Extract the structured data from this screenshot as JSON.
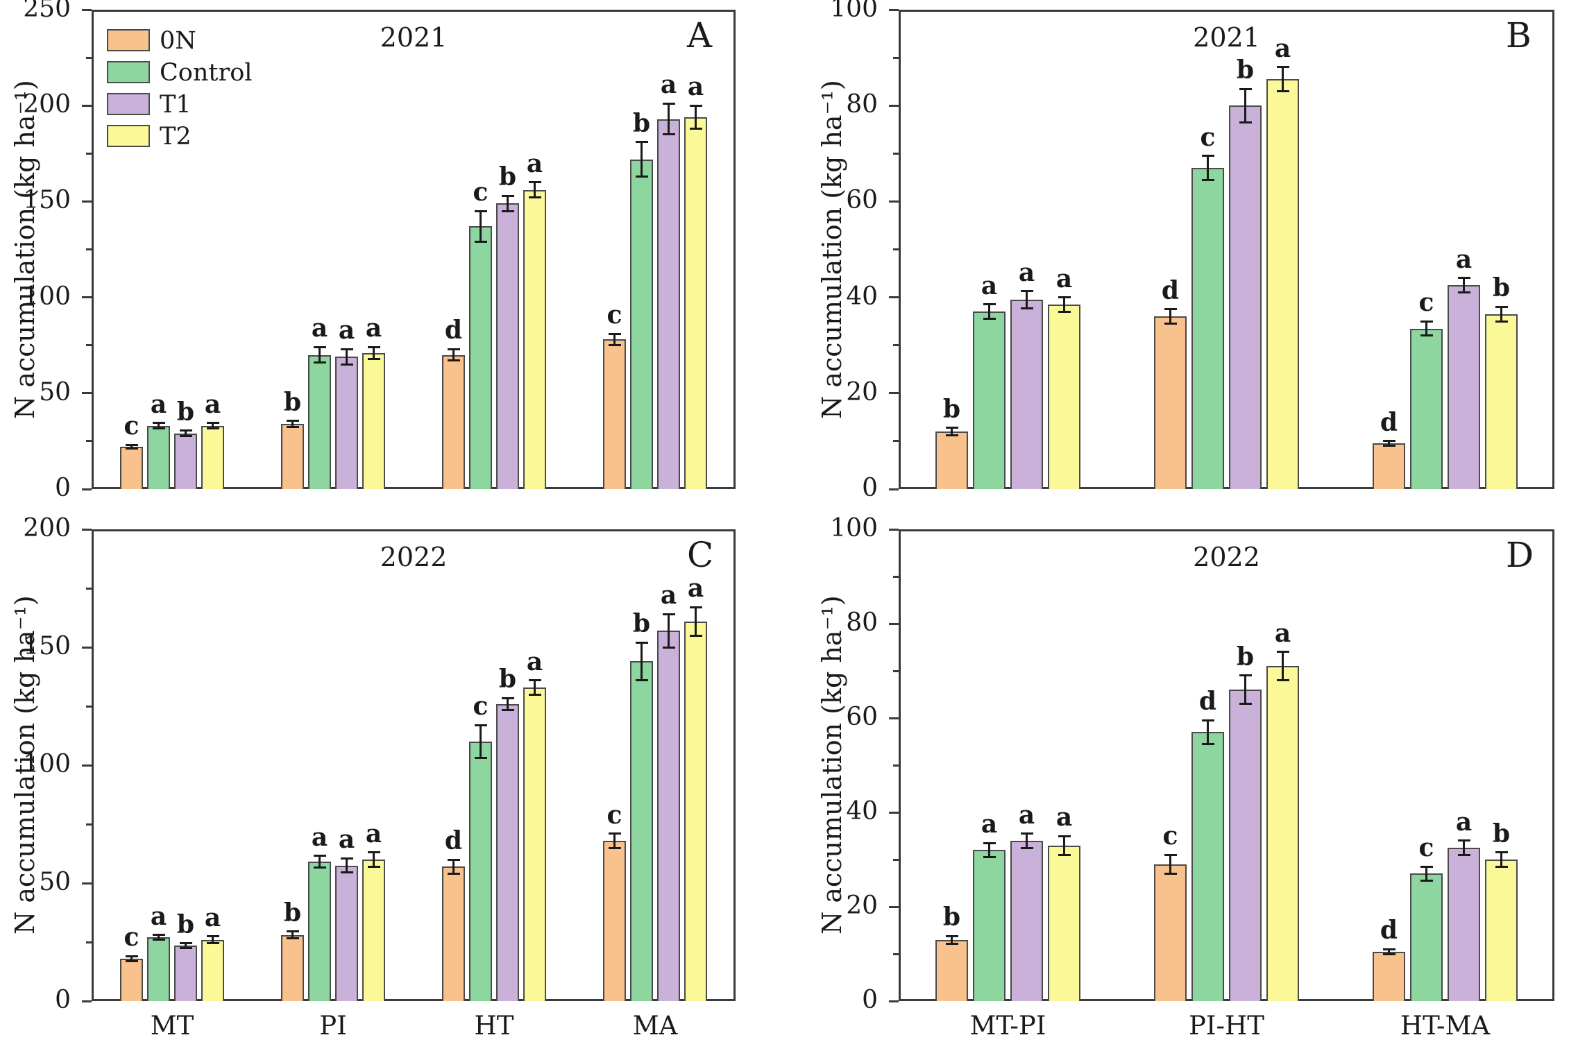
{
  "figure": {
    "background": "#ffffff",
    "axis_color": "#3a3a3a",
    "text_color": "#1a1a1a",
    "error_bar_color": "#1a1a1a",
    "bar_border_color": "#4a4a4a",
    "legend_items": [
      "0N",
      "Control",
      "T1",
      "T2"
    ],
    "treatment_colors": {
      "0N": "#f9c18c",
      "Control": "#8dd6a0",
      "T1": "#cab1da",
      "T2": "#fbf897"
    }
  },
  "chart_data": [
    {
      "id": "A",
      "type": "bar",
      "panel_label": "A",
      "title": "2021",
      "ylabel": "N accumulation (kg ha⁻¹)",
      "ylim": [
        0,
        250
      ],
      "yticks": [
        0,
        50,
        100,
        150,
        200,
        250
      ],
      "categories": [
        "MT",
        "PI",
        "HT",
        "MA"
      ],
      "show_legend": true,
      "show_category_labels": false,
      "legend_position": "top-left",
      "series": [
        {
          "name": "0N",
          "values": [
            22,
            34,
            70,
            78
          ],
          "errors": [
            1,
            1.5,
            3,
            3
          ],
          "letters": [
            "c",
            "b",
            "d",
            "c"
          ]
        },
        {
          "name": "Control",
          "values": [
            33,
            70,
            137,
            172
          ],
          "errors": [
            1.5,
            4,
            8,
            9
          ],
          "letters": [
            "a",
            "a",
            "c",
            "b"
          ]
        },
        {
          "name": "T1",
          "values": [
            29,
            69,
            149,
            193
          ],
          "errors": [
            1.5,
            4,
            4,
            8
          ],
          "letters": [
            "b",
            "a",
            "b",
            "a"
          ]
        },
        {
          "name": "T2",
          "values": [
            33,
            71,
            156,
            194
          ],
          "errors": [
            1.5,
            3,
            4,
            6
          ],
          "letters": [
            "a",
            "a",
            "a",
            "a"
          ]
        }
      ]
    },
    {
      "id": "B",
      "type": "bar",
      "panel_label": "B",
      "title": "2021",
      "ylabel": "N accumulation (kg ha⁻¹)",
      "ylim": [
        0,
        100
      ],
      "yticks": [
        0,
        20,
        40,
        60,
        80,
        100
      ],
      "categories": [
        "MT-PI",
        "PI-HT",
        "HT-MA"
      ],
      "show_legend": false,
      "show_category_labels": false,
      "series": [
        {
          "name": "0N",
          "values": [
            12,
            36,
            9.5
          ],
          "errors": [
            0.8,
            1.5,
            0.5
          ],
          "letters": [
            "b",
            "d",
            "d"
          ]
        },
        {
          "name": "Control",
          "values": [
            37,
            67,
            33.5
          ],
          "errors": [
            1.5,
            2.5,
            1.5
          ],
          "letters": [
            "a",
            "c",
            "c"
          ]
        },
        {
          "name": "T1",
          "values": [
            39.5,
            80,
            42.5
          ],
          "errors": [
            1.8,
            3.5,
            1.5
          ],
          "letters": [
            "a",
            "b",
            "a"
          ]
        },
        {
          "name": "T2",
          "values": [
            38.5,
            85.5,
            36.5
          ],
          "errors": [
            1.5,
            2.5,
            1.5
          ],
          "letters": [
            "a",
            "a",
            "b"
          ]
        }
      ]
    },
    {
      "id": "C",
      "type": "bar",
      "panel_label": "C",
      "title": "2022",
      "ylabel": "N accumulation (kg ha⁻¹)",
      "ylim": [
        0,
        200
      ],
      "yticks": [
        0,
        50,
        100,
        150,
        200
      ],
      "categories": [
        "MT",
        "PI",
        "HT",
        "MA"
      ],
      "show_legend": false,
      "show_category_labels": true,
      "series": [
        {
          "name": "0N",
          "values": [
            18,
            28,
            57,
            68
          ],
          "errors": [
            1,
            1.5,
            3,
            3
          ],
          "letters": [
            "c",
            "b",
            "d",
            "c"
          ]
        },
        {
          "name": "Control",
          "values": [
            27,
            59,
            110,
            144
          ],
          "errors": [
            1,
            2.5,
            7,
            8
          ],
          "letters": [
            "a",
            "a",
            "c",
            "b"
          ]
        },
        {
          "name": "T1",
          "values": [
            23.5,
            57.5,
            126,
            157
          ],
          "errors": [
            1,
            3,
            2.5,
            7
          ],
          "letters": [
            "b",
            "a",
            "b",
            "a"
          ]
        },
        {
          "name": "T2",
          "values": [
            26,
            60,
            133,
            161
          ],
          "errors": [
            1.5,
            3,
            3,
            6
          ],
          "letters": [
            "a",
            "a",
            "a",
            "a"
          ]
        }
      ]
    },
    {
      "id": "D",
      "type": "bar",
      "panel_label": "D",
      "title": "2022",
      "ylabel": "N accumulation (kg ha⁻¹)",
      "ylim": [
        0,
        100
      ],
      "yticks": [
        0,
        20,
        40,
        60,
        80,
        100
      ],
      "categories": [
        "MT-PI",
        "PI-HT",
        "HT-MA"
      ],
      "show_legend": false,
      "show_category_labels": true,
      "series": [
        {
          "name": "0N",
          "values": [
            13,
            29,
            10.5
          ],
          "errors": [
            0.8,
            2,
            0.5
          ],
          "letters": [
            "b",
            "c",
            "d"
          ]
        },
        {
          "name": "Control",
          "values": [
            32,
            57,
            27
          ],
          "errors": [
            1.5,
            2.5,
            1.5
          ],
          "letters": [
            "a",
            "d",
            "c"
          ]
        },
        {
          "name": "T1",
          "values": [
            34,
            66,
            32.5
          ],
          "errors": [
            1.5,
            3,
            1.5
          ],
          "letters": [
            "a",
            "b",
            "a"
          ]
        },
        {
          "name": "T2",
          "values": [
            33,
            71,
            30
          ],
          "errors": [
            2,
            3,
            1.5
          ],
          "letters": [
            "a",
            "a",
            "b"
          ]
        }
      ]
    }
  ]
}
